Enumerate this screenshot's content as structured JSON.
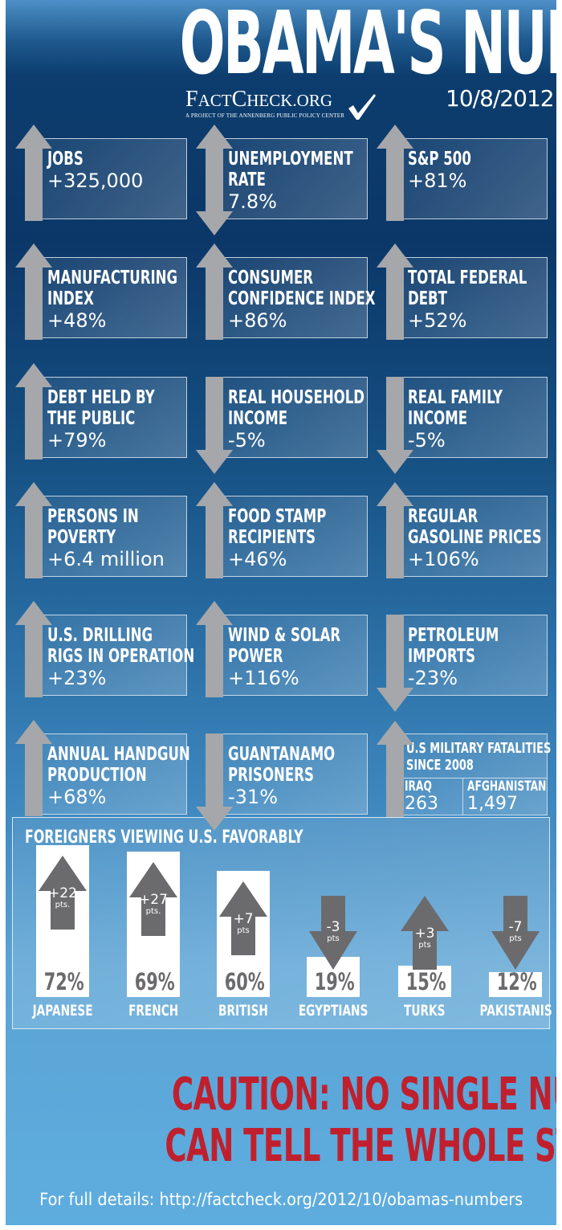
{
  "header": {
    "title": "OBAMA'S NUMBERS",
    "logo": {
      "name_big_1": "F",
      "name_small_1": "ACT",
      "name_big_2": "C",
      "name_small_2": "HECK.ORG",
      "tagline": "A PROJECT OF THE ANNENBERG PUBLIC POLICY CENTER",
      "icon": "checkmark-icon"
    },
    "date": "10/8/2012"
  },
  "colors": {
    "arrow": "#a5a7aa",
    "caution_red": "#c0202e",
    "fav_arrow": "#6b6b6e",
    "bar_white": "#ffffff"
  },
  "stats": [
    {
      "label_1": "JOBS",
      "label_2": "",
      "value": "+325,000",
      "direction": "up"
    },
    {
      "label_1": "UNEMPLOYMENT",
      "label_2": "RATE",
      "value": "7.8%",
      "direction": "both"
    },
    {
      "label_1": "S&P 500",
      "label_2": "",
      "value": "+81%",
      "direction": "up"
    },
    {
      "label_1": "MANUFACTURING",
      "label_2": "INDEX",
      "value": "+48%",
      "direction": "up"
    },
    {
      "label_1": "CONSUMER",
      "label_2": "CONFIDENCE INDEX",
      "value": "+86%",
      "direction": "up"
    },
    {
      "label_1": "TOTAL FEDERAL",
      "label_2": "DEBT",
      "value": "+52%",
      "direction": "up"
    },
    {
      "label_1": "DEBT HELD BY",
      "label_2": "THE PUBLIC",
      "value": "+79%",
      "direction": "up"
    },
    {
      "label_1": "REAL HOUSEHOLD",
      "label_2": "INCOME",
      "value": "-5%",
      "direction": "down"
    },
    {
      "label_1": "REAL FAMILY",
      "label_2": "INCOME",
      "value": "-5%",
      "direction": "down"
    },
    {
      "label_1": "PERSONS IN",
      "label_2": "POVERTY",
      "value": "+6.4 million",
      "direction": "up"
    },
    {
      "label_1": "FOOD STAMP",
      "label_2": "RECIPIENTS",
      "value": "+46%",
      "direction": "up"
    },
    {
      "label_1": "REGULAR",
      "label_2": "GASOLINE PRICES",
      "value": "+106%",
      "direction": "up"
    },
    {
      "label_1": "U.S. DRILLING",
      "label_2": "RIGS IN OPERATION",
      "value": "+23%",
      "direction": "up"
    },
    {
      "label_1": "WIND & SOLAR",
      "label_2": "POWER",
      "value": "+116%",
      "direction": "up"
    },
    {
      "label_1": "PETROLEUM",
      "label_2": "IMPORTS",
      "value": "-23%",
      "direction": "down"
    },
    {
      "label_1": "ANNUAL HANDGUN",
      "label_2": "PRODUCTION",
      "value": "+68%",
      "direction": "up"
    },
    {
      "label_1": "GUANTANAMO",
      "label_2": "PRISONERS",
      "value": "-31%",
      "direction": "down"
    }
  ],
  "military": {
    "label_1": "U.S MILITARY FATALITIES",
    "label_2": "SINCE 2008",
    "direction": "up",
    "iraq_label": "IRAQ",
    "iraq_value": "263",
    "afghanistan_label": "AFGHANISTAN",
    "afghanistan_value": "1,497"
  },
  "chart_data": {
    "type": "bar",
    "title": "FOREIGNERS VIEWING U.S. FAVORABLY",
    "xlabel": "",
    "ylabel": "",
    "ylim": [
      0,
      100
    ],
    "categories": [
      "JAPANESE",
      "FRENCH",
      "BRITISH",
      "EGYPTIANS",
      "TURKS",
      "PAKISTANIS"
    ],
    "values": [
      72,
      69,
      60,
      19,
      15,
      12
    ],
    "value_labels": [
      "72%",
      "69%",
      "60%",
      "19%",
      "15%",
      "12%"
    ],
    "change_pts": [
      22,
      27,
      7,
      -3,
      3,
      -7
    ],
    "change_labels": [
      "+22",
      "+27",
      "+7",
      "-3",
      "+3",
      "-7"
    ],
    "change_units": [
      "pts.",
      "pts.",
      "pts",
      "pts",
      "pts",
      "pts"
    ]
  },
  "caution": {
    "line_1": "CAUTION: NO SINGLE NUMBER",
    "line_2": "CAN TELL THE WHOLE STORY"
  },
  "footer": {
    "text": "For full details: http://factcheck.org/2012/10/obamas-numbers"
  }
}
